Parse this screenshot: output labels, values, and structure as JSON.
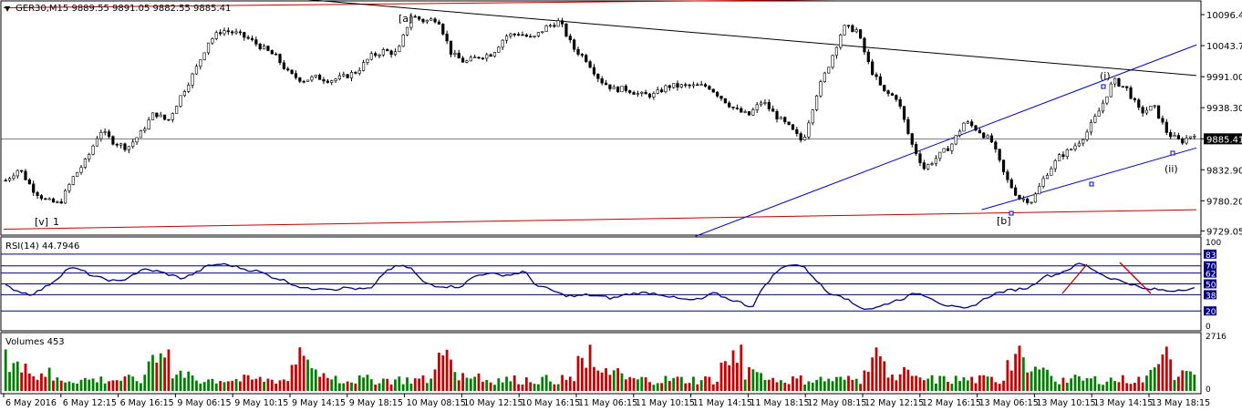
{
  "symbol_header": {
    "menu_glyph": "▼",
    "text": "GER30,M15  9889.55 9891.05 9882.55 9885.41"
  },
  "colors": {
    "bull": "#000000",
    "bear": "#000000",
    "grid": "#000000",
    "trendline_red": "#c00000",
    "trendline_black": "#000000",
    "channel_blue": "#0000c8",
    "rsi_line": "#000080",
    "rsi_levels": "#000080",
    "rsi_annot": "#c00000",
    "vol_up": "#008000",
    "vol_down": "#c80000",
    "price_tag_bg": "#000000",
    "price_tag_fg": "#ffffff"
  },
  "chart_data": [
    {
      "type": "candlestick",
      "title": "GER30,M15",
      "price_axis_ticks": [
        "10096.40",
        "10043.70",
        "9991.00",
        "9938.30",
        "9885.41",
        "9832.90",
        "9780.20",
        "9729.05"
      ],
      "price_axis_values": [
        10096.4,
        10043.7,
        9991.0,
        9938.3,
        9885.41,
        9832.9,
        9780.2,
        9729.05
      ],
      "ylim": [
        9725,
        10115
      ],
      "last_price": "9885.41",
      "ohlc_last": {
        "open": 9889.55,
        "high": 9891.05,
        "low": 9882.55,
        "close": 9885.41
      },
      "close_path": [
        9815,
        9835,
        9800,
        9780,
        9775,
        9820,
        9850,
        9900,
        9880,
        9870,
        9895,
        9930,
        9915,
        9960,
        10000,
        10050,
        10070,
        10065,
        10055,
        10040,
        10025,
        9995,
        9985,
        9990,
        9985,
        9990,
        10000,
        10025,
        10035,
        10030,
        10095,
        10085,
        10090,
        10030,
        10015,
        10025,
        10030,
        10060,
        10065,
        10055,
        10075,
        10085,
        10040,
        10020,
        9985,
        9970,
        9970,
        9960,
        9960,
        9975,
        9975,
        9975,
        9975,
        9955,
        9935,
        9925,
        9950,
        9925,
        9905,
        9880,
        9960,
        10015,
        10075,
        10070,
        10005,
        9965,
        9955,
        9880,
        9835,
        9855,
        9875,
        9915,
        9900,
        9880,
        9820,
        9785,
        9780,
        9825,
        9855,
        9870,
        9895,
        9935,
        9985,
        9970,
        9930,
        9940,
        9895,
        9880,
        9895
      ],
      "annotations": [
        "[a]",
        "(i)",
        "(ii)",
        "[b]",
        "[v]",
        "1"
      ],
      "trendlines": [
        {
          "name": "upper-red",
          "from": [
            0,
            10108
          ],
          "to": [
            1,
            10128
          ]
        },
        {
          "name": "lower-red",
          "from": [
            0,
            9732
          ],
          "to": [
            1,
            9765
          ]
        },
        {
          "name": "black-down",
          "from": [
            0.22,
            10128
          ],
          "to": [
            1,
            9993
          ]
        },
        {
          "name": "blue-channel-upper",
          "from": [
            0.58,
            9720
          ],
          "to": [
            1,
            10045
          ]
        },
        {
          "name": "blue-channel-lower",
          "from": [
            0.82,
            9765
          ],
          "to": [
            1,
            9870
          ]
        }
      ]
    },
    {
      "type": "line",
      "title": "RSI(14) 44.7946",
      "label": "RSI(14) 44.7946",
      "axis_ticks": [
        "100",
        "83",
        "70",
        "62",
        "50",
        "38",
        "20",
        "0"
      ],
      "levels": [
        83,
        70,
        62,
        50,
        38,
        20
      ],
      "level_labels": [
        "83",
        "70",
        "62",
        "50",
        "38",
        "20"
      ],
      "ylim": [
        0,
        100
      ],
      "current": 44.7946,
      "path": [
        48,
        42,
        38,
        45,
        55,
        68,
        65,
        58,
        55,
        52,
        60,
        66,
        64,
        60,
        56,
        62,
        70,
        72,
        70,
        66,
        64,
        58,
        54,
        48,
        44,
        46,
        44,
        46,
        44,
        45,
        64,
        70,
        68,
        52,
        48,
        47,
        47,
        58,
        62,
        60,
        60,
        64,
        48,
        44,
        38,
        36,
        38,
        36,
        34,
        38,
        40,
        40,
        38,
        34,
        32,
        33,
        40,
        34,
        30,
        24,
        48,
        64,
        72,
        70,
        56,
        40,
        38,
        28,
        22,
        24,
        30,
        34,
        40,
        36,
        28,
        24,
        22,
        30,
        38,
        42,
        44,
        46,
        58,
        60,
        66,
        73,
        66,
        58,
        54,
        50,
        44,
        44,
        42,
        44,
        45
      ]
    },
    {
      "type": "bar",
      "title": "Volumes 453",
      "label": "Volumes 453",
      "axis_ticks": [
        "2716",
        "0"
      ],
      "ylim": [
        0,
        2716
      ],
      "current": 453,
      "x_ticks": [
        "6 May 2016",
        "6 May 12:15",
        "6 May 16:15",
        "9 May 06:15",
        "9 May 10:15",
        "9 May 14:15",
        "9 May 18:15",
        "10 May 08:15",
        "10 May 12:15",
        "10 May 16:15",
        "11 May 06:15",
        "11 May 10:15",
        "11 May 14:15",
        "11 May 18:15",
        "12 May 08:15",
        "12 May 12:15",
        "12 May 16:15",
        "13 May 06:15",
        "13 May 10:15",
        "13 May 14:15",
        "13 May 18:15"
      ]
    }
  ]
}
